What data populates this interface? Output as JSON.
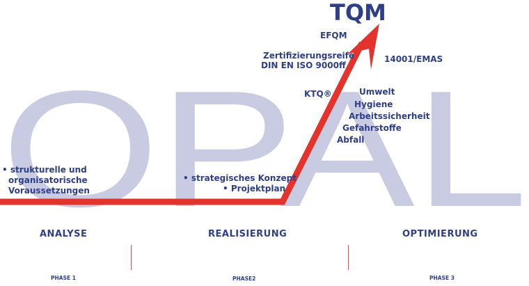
{
  "background_word": "OPAL",
  "goal": "TQM",
  "labels": {
    "efqm": "EFQM",
    "zert1": "Zertifizierungsreife",
    "zert2": "DIN EN ISO 9000ff",
    "emas": "14001/EMAS",
    "ktq": "KTQ®",
    "umwelt": "Umwelt",
    "hygiene": "Hygiene",
    "arbeit": "Arbeitssicherheit",
    "gefahr": "Gefahrstoffe",
    "abfall": "Abfall",
    "struk1": "• strukturelle und",
    "struk2": "organisatorische",
    "struk3": "Voraussetzungen",
    "strat": "• strategisches Konzept",
    "projekt": "• Projektplan"
  },
  "phases": [
    {
      "name": "ANALYSE",
      "phase": "PHASE 1"
    },
    {
      "name": "REALISIERUNG",
      "phase": "PHASE2"
    },
    {
      "name": "OPTIMIERUNG",
      "phase": "PHASE 3"
    }
  ],
  "colors": {
    "text": "#2e3f86",
    "letters": "#c9cbe3",
    "arrow": "#e2332d"
  }
}
